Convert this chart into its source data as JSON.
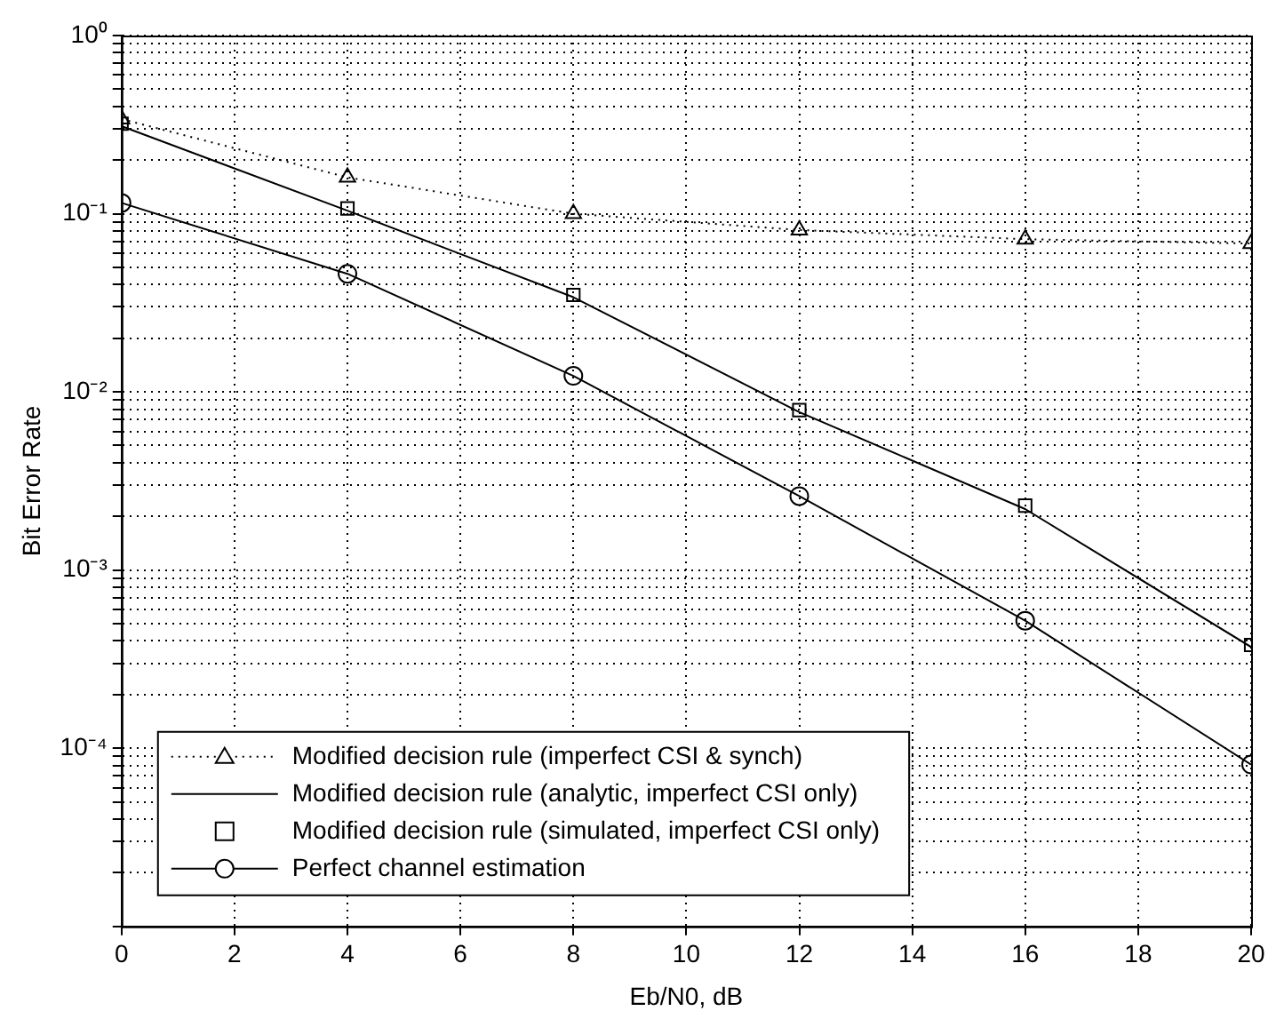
{
  "chart_data": {
    "type": "line",
    "xlabel": "Eb/N0, dB",
    "ylabel": "Bit Error Rate",
    "x": [
      0,
      4,
      8,
      12,
      16,
      20
    ],
    "log": "y",
    "grid": true,
    "legend": "bottom left",
    "xlim": [
      0,
      20
    ],
    "xticks": [
      0,
      2,
      4,
      6,
      8,
      10,
      12,
      14,
      16,
      18,
      20
    ],
    "ylim": [
      1e-05,
      1
    ],
    "yticks": [
      {
        "value": 1e-05,
        "label": null
      },
      {
        "value": 2e-05,
        "label": null
      },
      {
        "value": 3e-05,
        "label": null
      },
      {
        "value": 4e-05,
        "label": null
      },
      {
        "value": 5e-05,
        "label": null
      },
      {
        "value": 6e-05,
        "label": null
      },
      {
        "value": 7e-05,
        "label": null
      },
      {
        "value": 8e-05,
        "label": null
      },
      {
        "value": 9e-05,
        "label": null
      },
      {
        "value": 0.0001,
        "label": "10⁻⁴"
      },
      {
        "value": 0.0002,
        "label": null
      },
      {
        "value": 0.0003,
        "label": null
      },
      {
        "value": 0.0004,
        "label": null
      },
      {
        "value": 0.0005,
        "label": null
      },
      {
        "value": 0.0006,
        "label": null
      },
      {
        "value": 0.0007,
        "label": null
      },
      {
        "value": 0.0008,
        "label": null
      },
      {
        "value": 0.0009,
        "label": null
      },
      {
        "value": 0.001,
        "label": "10⁻³"
      },
      {
        "value": 0.002,
        "label": null
      },
      {
        "value": 0.003,
        "label": null
      },
      {
        "value": 0.004,
        "label": null
      },
      {
        "value": 0.005,
        "label": null
      },
      {
        "value": 0.006,
        "label": null
      },
      {
        "value": 0.007,
        "label": null
      },
      {
        "value": 0.008,
        "label": null
      },
      {
        "value": 0.009,
        "label": null
      },
      {
        "value": 0.01,
        "label": "10⁻²"
      },
      {
        "value": 0.02,
        "label": null
      },
      {
        "value": 0.03,
        "label": null
      },
      {
        "value": 0.04,
        "label": null
      },
      {
        "value": 0.05,
        "label": null
      },
      {
        "value": 0.06,
        "label": null
      },
      {
        "value": 0.07,
        "label": null
      },
      {
        "value": 0.08,
        "label": null
      },
      {
        "value": 0.09,
        "label": null
      },
      {
        "value": 0.1,
        "label": "10⁻¹"
      },
      {
        "value": 0.2,
        "label": null
      },
      {
        "value": 0.3,
        "label": null
      },
      {
        "value": 0.4,
        "label": null
      },
      {
        "value": 0.5,
        "label": null
      },
      {
        "value": 0.6,
        "label": null
      },
      {
        "value": 0.7,
        "label": null
      },
      {
        "value": 0.8,
        "label": null
      },
      {
        "value": 0.9,
        "label": null
      },
      {
        "value": 1,
        "label": "10⁰"
      }
    ],
    "series": [
      {
        "name": "Modified decision rule (imperfect CSI & synch)",
        "color": "#000000",
        "marker": "triangle",
        "line_style": "dotted",
        "values": [
          0.34,
          0.16,
          0.1,
          0.081,
          0.072,
          0.068
        ]
      },
      {
        "name": "Modified decision rule (analytic, imperfect CSI only)",
        "color": "#000000",
        "marker": "none",
        "line_style": "solid",
        "values": [
          0.31,
          0.104,
          0.034,
          0.0077,
          0.0022,
          0.00037
        ]
      },
      {
        "name": "Modified decision rule (simulated, imperfect CSI only)",
        "type": "scatter",
        "color": "#000000",
        "marker": "square",
        "values": [
          0.32,
          0.107,
          0.035,
          0.0079,
          0.0023,
          0.00038
        ]
      },
      {
        "name": "Perfect channel estimation",
        "color": "#000000",
        "marker": "circle",
        "line_style": "solid",
        "values": [
          0.115,
          0.046,
          0.0123,
          0.0026,
          0.00052,
          8.1e-05
        ]
      }
    ]
  }
}
